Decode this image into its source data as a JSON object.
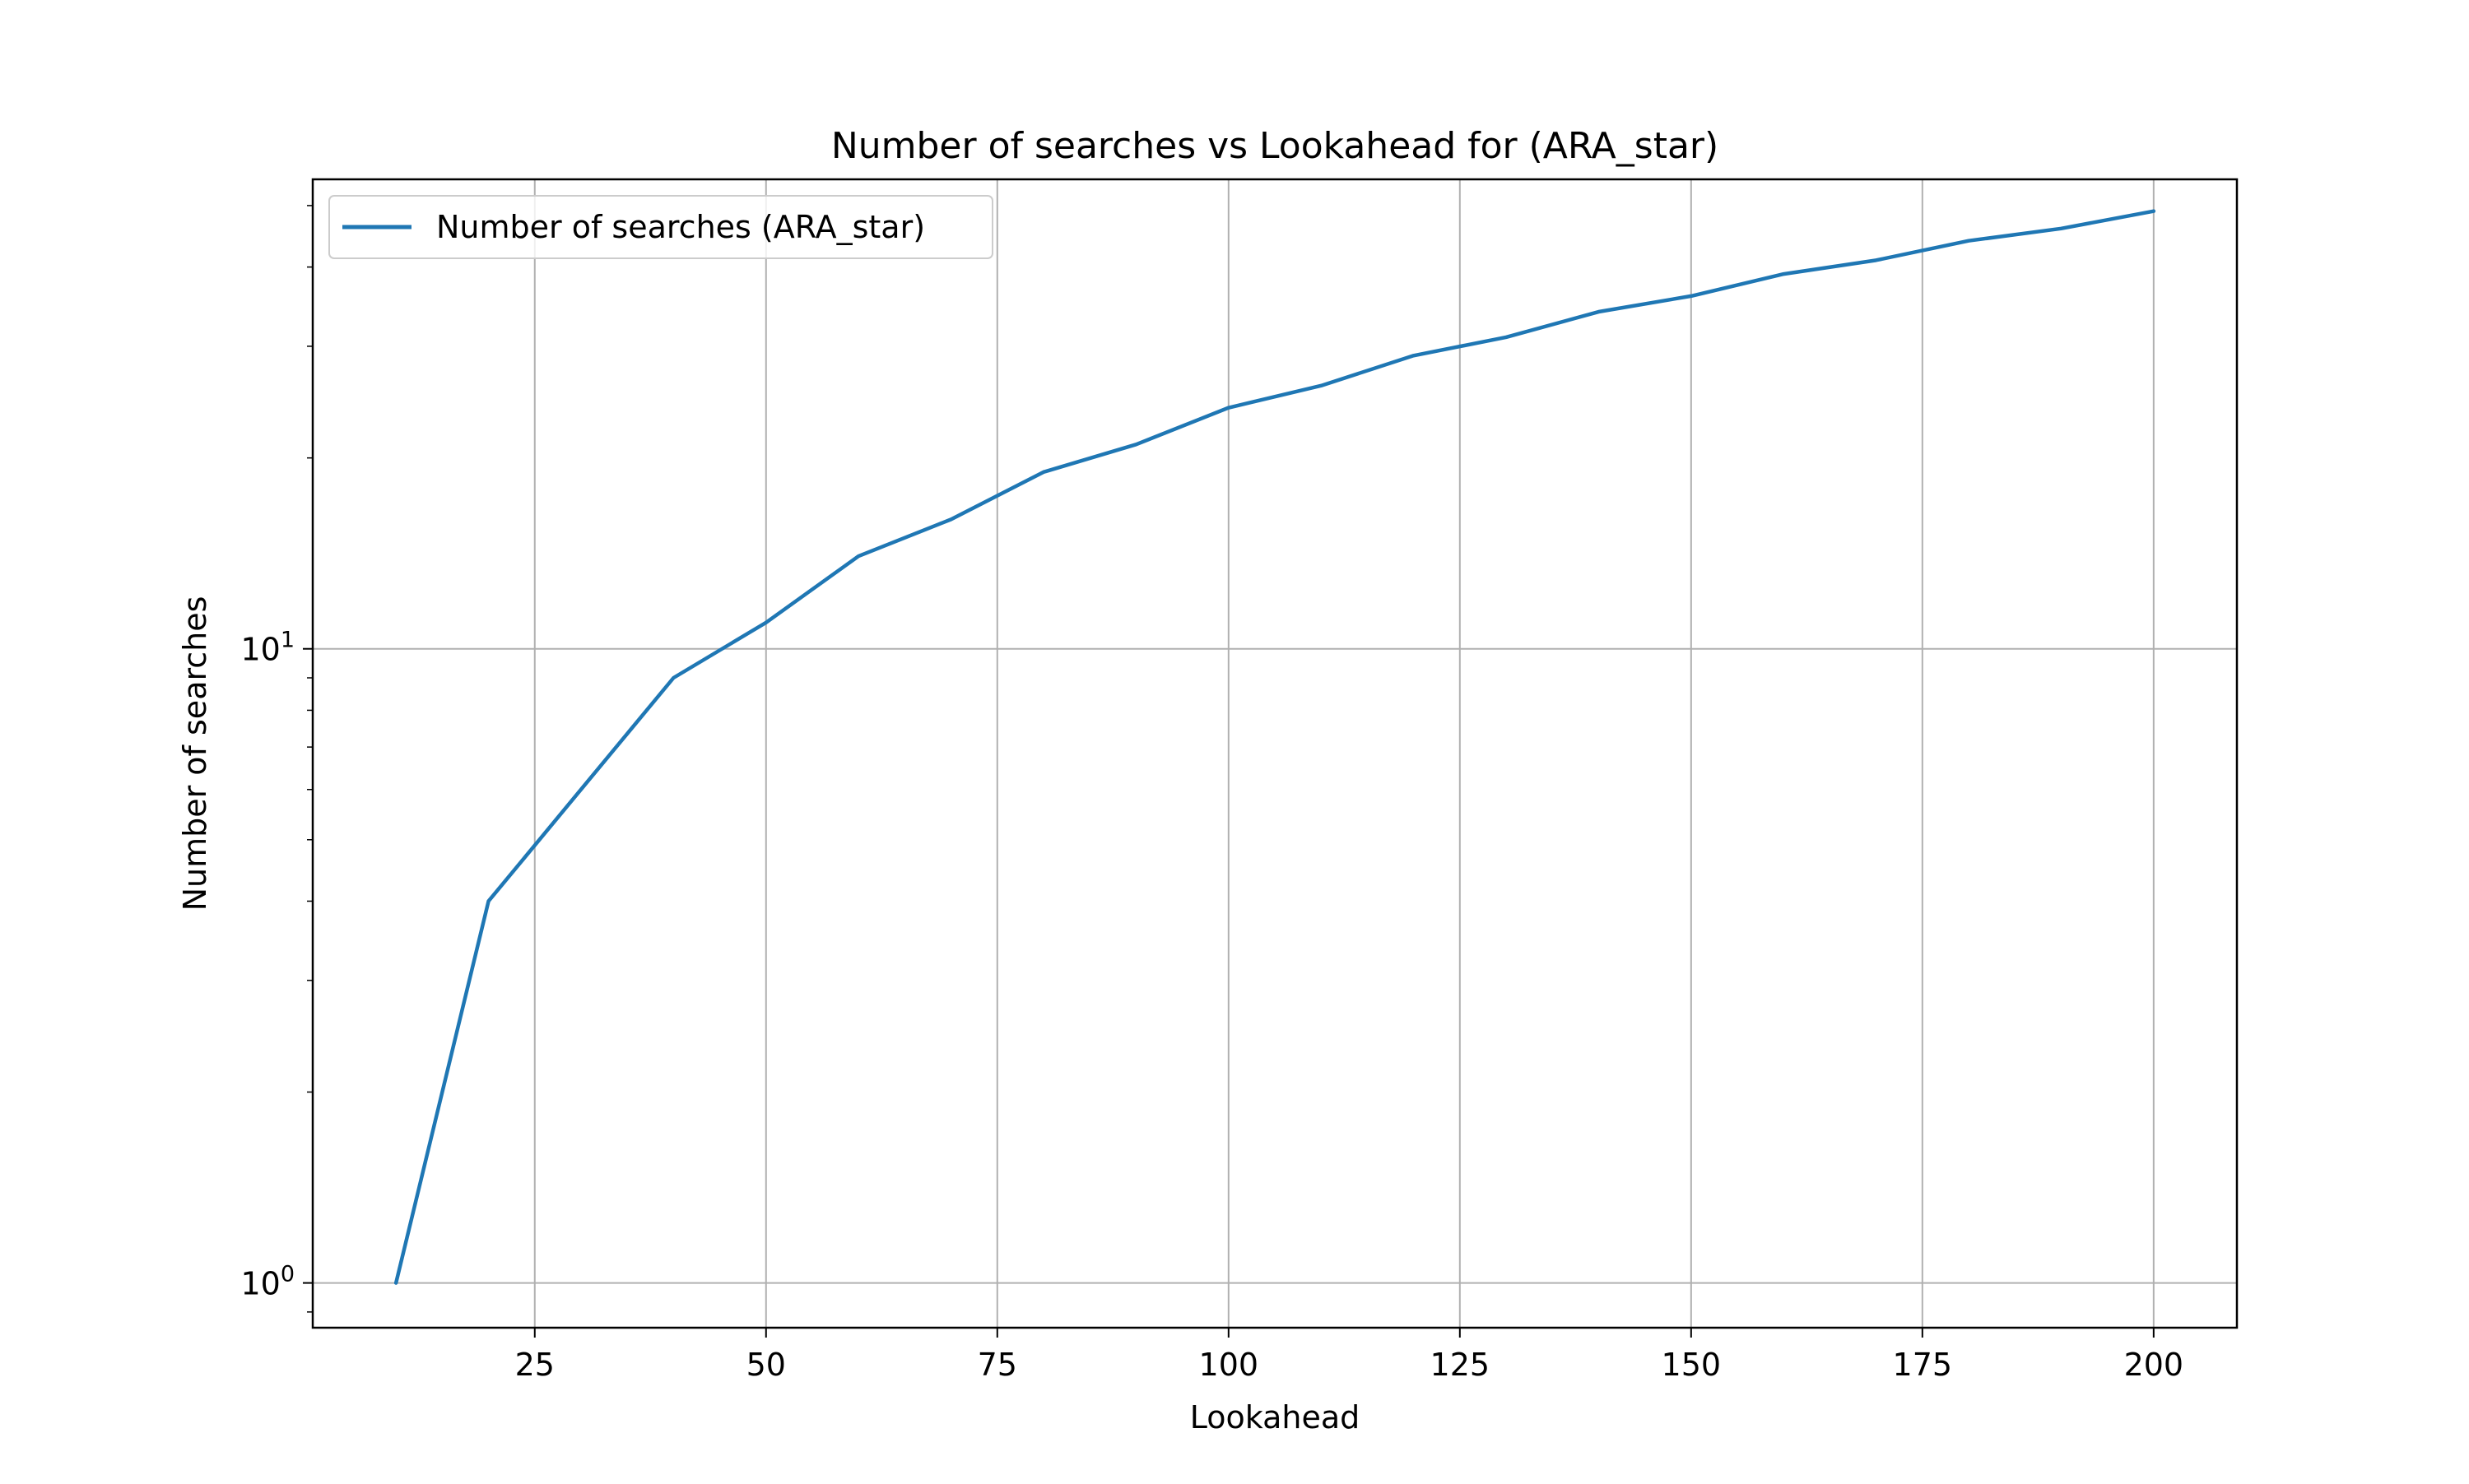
{
  "chart_data": {
    "type": "line",
    "title": "Number of searches vs Lookahead for  (ARA_star)",
    "xlabel": "Lookahead",
    "ylabel": "Number of searches",
    "yscale": "log",
    "xlim": [
      1,
      209
    ],
    "ylim": [
      0.85,
      55
    ],
    "grid": true,
    "legend_position": "upper left",
    "x_ticks": [
      25,
      50,
      75,
      100,
      125,
      150,
      175,
      200
    ],
    "x_tick_labels": [
      "25",
      "50",
      "75",
      "100",
      "125",
      "150",
      "175",
      "200"
    ],
    "y_ticks": [
      {
        "value": 1,
        "base": "10",
        "exponent": "0"
      },
      {
        "value": 10,
        "base": "10",
        "exponent": "1"
      }
    ],
    "series": [
      {
        "name": "Number of searches (ARA_star)",
        "color": "#1f77b4",
        "x": [
          10,
          20,
          30,
          40,
          50,
          60,
          70,
          80,
          90,
          100,
          110,
          120,
          130,
          140,
          150,
          160,
          170,
          180,
          190,
          200
        ],
        "y": [
          1,
          4,
          6,
          9,
          11,
          14,
          16,
          19,
          21,
          24,
          26,
          29,
          31,
          34,
          36,
          39,
          41,
          44,
          46,
          49
        ]
      }
    ]
  }
}
